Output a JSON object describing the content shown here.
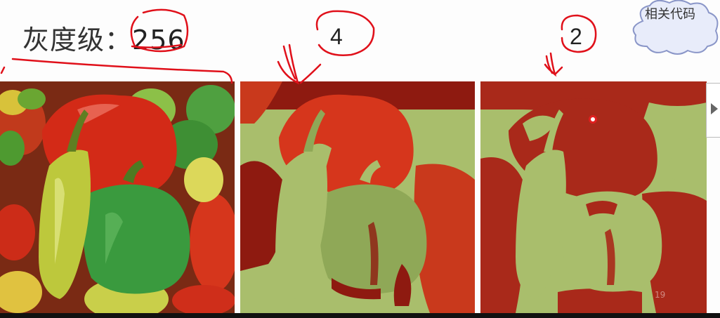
{
  "slide": {
    "title_prefix": "灰度级：",
    "title_value": "256",
    "level_4_label": "4",
    "level_2_label": "2",
    "related_code_button": "相关代码",
    "page_number": "19"
  },
  "images": [
    {
      "name": "peppers-256-levels",
      "levels": 256
    },
    {
      "name": "peppers-4-levels",
      "levels": 4
    },
    {
      "name": "peppers-2-levels",
      "levels": 2
    }
  ],
  "colors": {
    "red_bright": "#d63a1e",
    "red_dark": "#8e1a10",
    "olive_light": "#a9be6c",
    "olive_mid": "#8fa857",
    "green_pepper": "#3a9a3e",
    "yellow_pepper": "#c9cf4a",
    "annotation_red": "#e0101a",
    "cloud_fill": "#e8ecfa",
    "cloud_stroke": "#8a96c8"
  }
}
